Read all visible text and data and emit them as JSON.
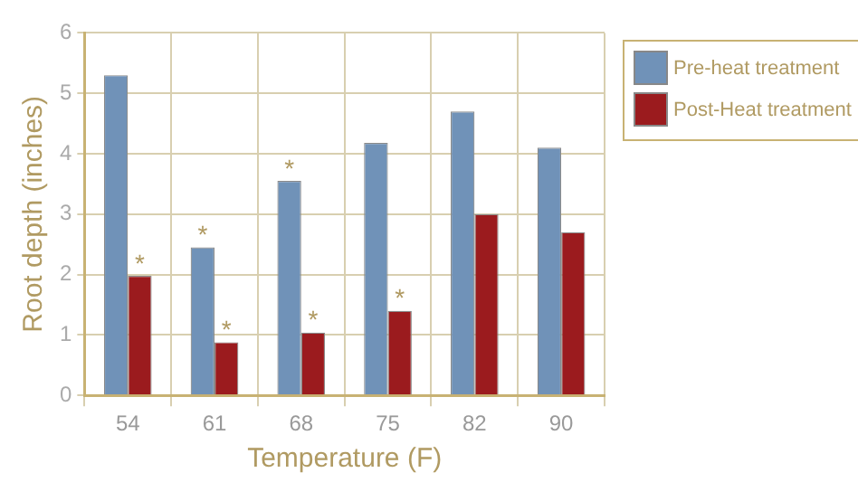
{
  "chart_data": {
    "type": "bar",
    "xlabel": "Temperature (F)",
    "ylabel": "Root depth (inches)",
    "categories": [
      "54",
      "61",
      "68",
      "75",
      "82",
      "90"
    ],
    "series": [
      {
        "name": "Pre-heat treatment",
        "color": "#7092b8",
        "values": [
          5.3,
          2.45,
          3.55,
          4.18,
          4.7,
          4.1
        ]
      },
      {
        "name": "Post-Heat treatment",
        "color": "#9b1b1e",
        "values": [
          1.98,
          0.88,
          1.04,
          1.4,
          3.0,
          2.7
        ]
      }
    ],
    "ylim": [
      0,
      6
    ],
    "yticks": [
      0,
      1,
      2,
      3,
      4,
      5,
      6
    ],
    "grid": true,
    "legend": "top right",
    "annotations": [
      {
        "text": "*",
        "x": "54",
        "y": 1.98
      },
      {
        "text": "*",
        "x": "61",
        "y": 2.45
      },
      {
        "text": "*",
        "x": "61",
        "y": 0.88
      },
      {
        "text": "*",
        "x": "68",
        "y": 3.55
      },
      {
        "text": "*",
        "x": "68",
        "y": 1.04
      },
      {
        "text": "*",
        "x": "75",
        "y": 1.4
      }
    ]
  }
}
